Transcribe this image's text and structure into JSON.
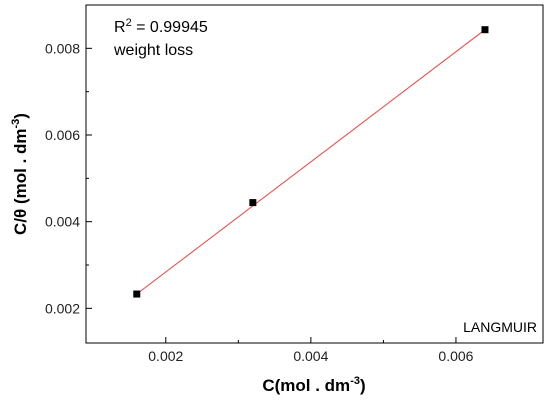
{
  "chart_data": {
    "type": "scatter",
    "xlabel": "C(mol . dm",
    "xlabel_sup": "-3",
    "xlabel_tail": ")",
    "ylabel": "C/θ (mol . dm",
    "ylabel_sup": "-3",
    "ylabel_tail": ")",
    "xlim": [
      0.0009,
      0.0072
    ],
    "ylim": [
      0.0012,
      0.009
    ],
    "xticks": [
      0.002,
      0.004,
      0.006
    ],
    "xtick_labels": [
      "0.002",
      "0.004",
      "0.006"
    ],
    "yticks": [
      0.002,
      0.004,
      0.006,
      0.008
    ],
    "ytick_labels": [
      "0.002",
      "0.004",
      "0.006",
      "0.008"
    ],
    "points": [
      {
        "x": 0.0016,
        "y": 0.00233
      },
      {
        "x": 0.0032,
        "y": 0.00444
      },
      {
        "x": 0.0064,
        "y": 0.00843
      }
    ],
    "fit_line": {
      "x": [
        0.0016,
        0.0064
      ],
      "y": [
        0.00233,
        0.00843
      ],
      "color": "#e8453c"
    },
    "marker_color": "#000000",
    "annotation_r2_prefix": "R",
    "annotation_r2_sup": "2",
    "annotation_r2_value": " = 0.99945",
    "annotation_method": "weight loss",
    "corner_label": "LANGMUIR",
    "grid": false
  }
}
